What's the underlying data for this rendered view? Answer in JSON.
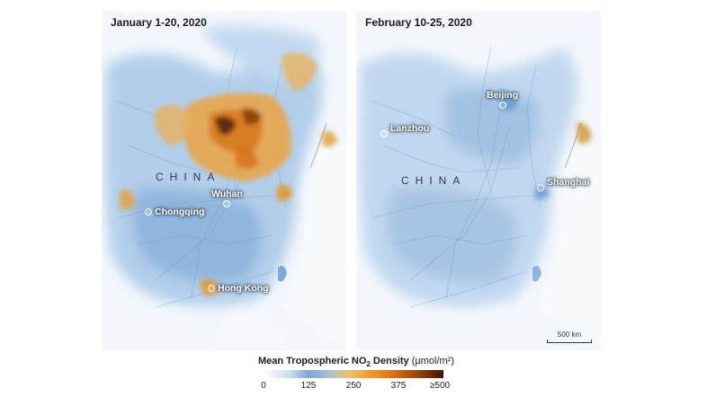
{
  "panels": [
    {
      "title": "January 1-20, 2020",
      "country_label": "CHINA",
      "cities": [
        "Chongqing",
        "Wuhan",
        "Hong Kong"
      ]
    },
    {
      "title": "February 10-25, 2020",
      "country_label": "CHINA",
      "cities": [
        "Lanzhou",
        "Beijing",
        "Shanghai"
      ],
      "scale_label": "500 km"
    }
  ],
  "legend": {
    "title_main": "Mean Tropospheric NO",
    "title_sub": "2",
    "title_after": " Density",
    "unit": " (µmol/m²)",
    "ticks": [
      "0",
      "125",
      "250",
      "375",
      "≥500"
    ]
  },
  "colors": {
    "background_low": "#eef4fb",
    "low": "#7aa9d6",
    "mid": "#efa035",
    "high": "#3c1402"
  }
}
